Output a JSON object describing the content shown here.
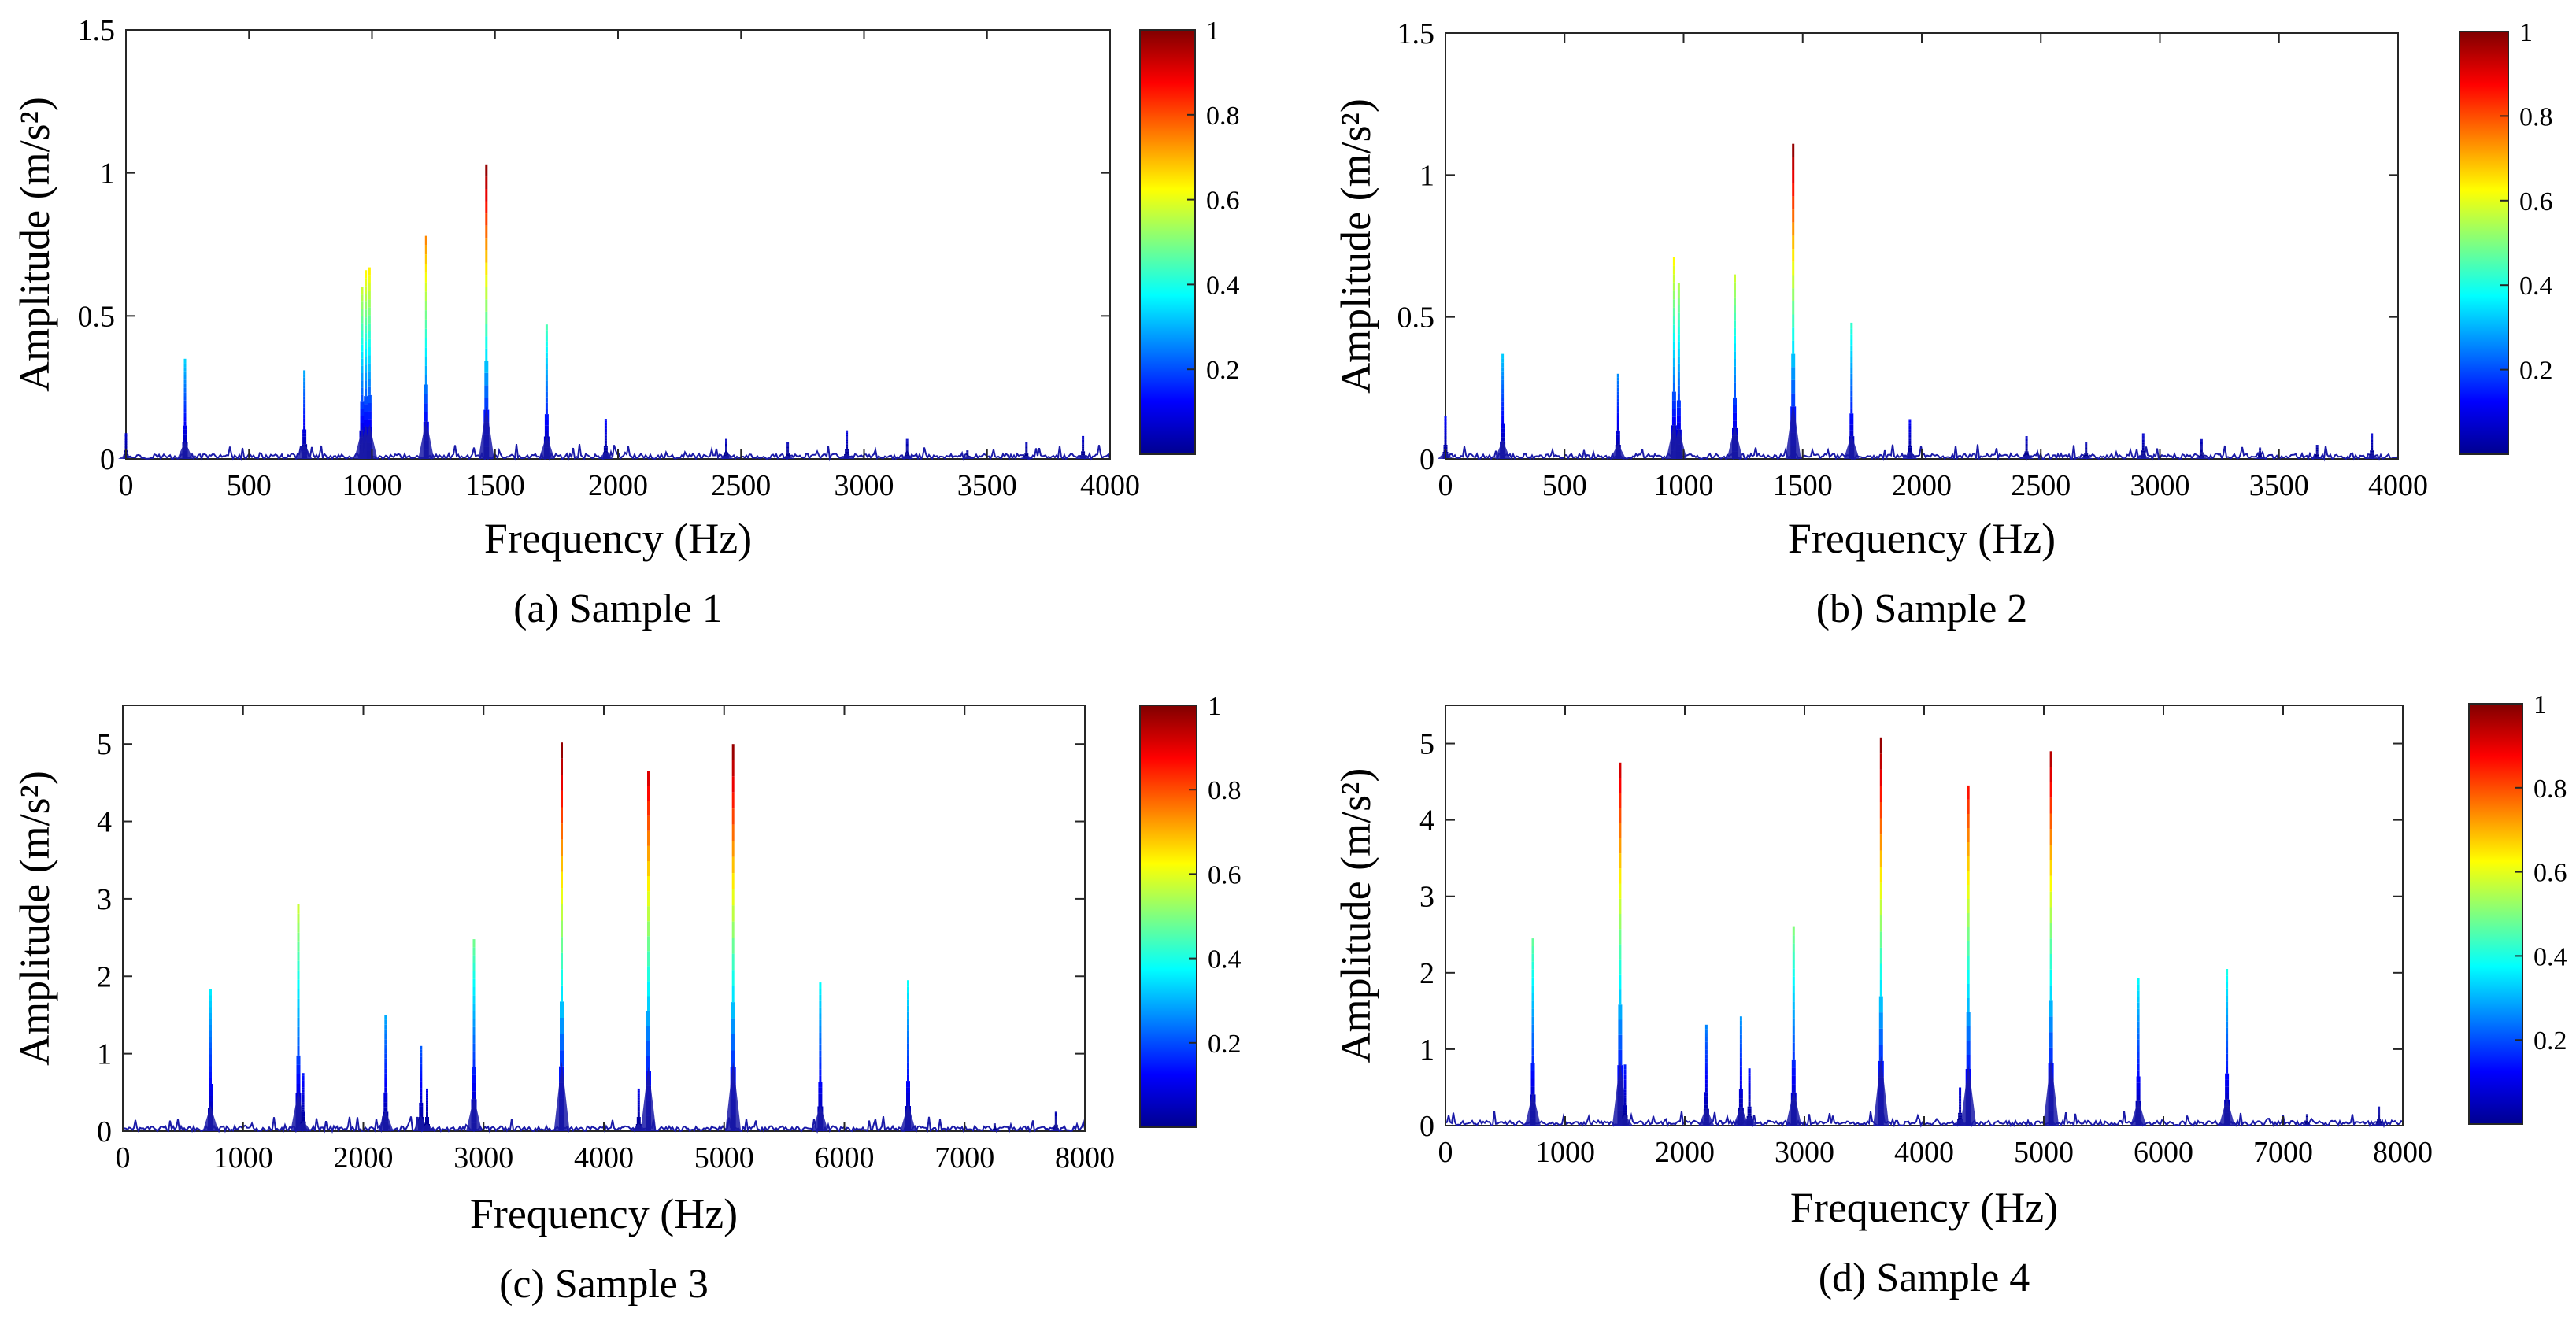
{
  "figure": {
    "panels": [
      {
        "caption": "(a) Sample 1"
      },
      {
        "caption": "(b) Sample 2"
      },
      {
        "caption": "(c) Sample 3"
      },
      {
        "caption": "(d) Sample 4"
      }
    ]
  },
  "chart_data": [
    {
      "type": "line",
      "caption": "(a) Sample 1",
      "xlabel": "Frequency (Hz)",
      "ylabel": "Amplitude (m/s²)",
      "xlim": [
        0,
        4000
      ],
      "ylim": [
        0,
        1.5
      ],
      "xticks": [
        0,
        500,
        1000,
        1500,
        2000,
        2500,
        3000,
        3500,
        4000
      ],
      "yticks": [
        0,
        0.5,
        1,
        1.5
      ],
      "ytick_labels": [
        "0",
        "0.5",
        "1",
        "1.5"
      ],
      "colorbar": {
        "range": [
          0,
          1
        ],
        "ticks": [
          "0.2",
          "0.4",
          "0.6",
          "0.8",
          "1"
        ],
        "colormap": "jet"
      },
      "grid": false,
      "series": [
        {
          "x": [
            0,
            240,
            725,
            960,
            975,
            990,
            1220,
            1465,
            1710,
            1950,
            2440,
            2690,
            2930,
            3175,
            3420,
            3660,
            3890
          ],
          "values": [
            0.09,
            0.35,
            0.31,
            0.6,
            0.66,
            0.67,
            0.78,
            1.03,
            0.47,
            0.14,
            0.07,
            0.06,
            0.1,
            0.07,
            0.03,
            0.06,
            0.08
          ]
        }
      ]
    },
    {
      "type": "line",
      "caption": "(b) Sample 2",
      "xlabel": "Frequency (Hz)",
      "ylabel": "Amplitude (m/s²)",
      "xlim": [
        0,
        4000
      ],
      "ylim": [
        0,
        1.5
      ],
      "xticks": [
        0,
        500,
        1000,
        1500,
        2000,
        2500,
        3000,
        3500,
        4000
      ],
      "yticks": [
        0,
        0.5,
        1,
        1.5
      ],
      "ytick_labels": [
        "0",
        "0.5",
        "1",
        "1.5"
      ],
      "colorbar": {
        "range": [
          0,
          1
        ],
        "ticks": [
          "0.2",
          "0.4",
          "0.6",
          "0.8",
          "1"
        ],
        "colormap": "jet"
      },
      "grid": false,
      "series": [
        {
          "x": [
            0,
            240,
            725,
            960,
            980,
            1215,
            1460,
            1705,
            1950,
            2440,
            2690,
            2930,
            3175,
            3420,
            3660,
            3890
          ],
          "values": [
            0.15,
            0.37,
            0.3,
            0.71,
            0.62,
            0.65,
            1.11,
            0.48,
            0.14,
            0.08,
            0.06,
            0.09,
            0.07,
            0.04,
            0.05,
            0.09
          ]
        }
      ]
    },
    {
      "type": "line",
      "caption": "(c) Sample 3",
      "xlabel": "Frequency (Hz)",
      "ylabel": "Amplitude (m/s²)",
      "xlim": [
        0,
        8000
      ],
      "ylim": [
        0,
        5.5
      ],
      "xticks": [
        0,
        1000,
        2000,
        3000,
        4000,
        5000,
        6000,
        7000,
        8000
      ],
      "yticks": [
        0,
        1,
        2,
        3,
        4,
        5
      ],
      "ytick_labels": [
        "0",
        "1",
        "2",
        "3",
        "4",
        "5"
      ],
      "colorbar": {
        "range": [
          0,
          1
        ],
        "ticks": [
          "0.2",
          "0.4",
          "0.6",
          "0.8",
          "1"
        ],
        "colormap": "jet"
      },
      "grid": false,
      "series": [
        {
          "x": [
            730,
            1460,
            1500,
            2185,
            2480,
            2530,
            2920,
            3650,
            4290,
            4370,
            5075,
            5800,
            6530,
            7250,
            7760
          ],
          "values": [
            1.83,
            2.93,
            0.75,
            1.5,
            1.1,
            0.55,
            2.48,
            5.02,
            0.55,
            4.65,
            5.0,
            1.92,
            1.95,
            0.1,
            0.25
          ]
        }
      ]
    },
    {
      "type": "line",
      "caption": "(d) Sample 4",
      "xlabel": "Frequency (Hz)",
      "ylabel": "Amplitude (m/s²)",
      "xlim": [
        0,
        8000
      ],
      "ylim": [
        0,
        5.5
      ],
      "xticks": [
        0,
        1000,
        2000,
        3000,
        4000,
        5000,
        6000,
        7000,
        8000
      ],
      "yticks": [
        0,
        1,
        2,
        3,
        4,
        5
      ],
      "ytick_labels": [
        "0",
        "1",
        "2",
        "3",
        "4",
        "5"
      ],
      "colorbar": {
        "range": [
          0,
          1
        ],
        "ticks": [
          "0.2",
          "0.4",
          "0.6",
          "0.8",
          "1"
        ],
        "colormap": "jet"
      },
      "grid": false,
      "series": [
        {
          "x": [
            730,
            1460,
            1500,
            2180,
            2470,
            2540,
            2910,
            3640,
            4300,
            4370,
            5060,
            5790,
            6530,
            7200,
            7800
          ],
          "values": [
            2.45,
            4.75,
            0.8,
            1.32,
            1.43,
            0.75,
            2.6,
            5.08,
            0.5,
            4.45,
            4.9,
            1.93,
            2.05,
            0.15,
            0.25
          ]
        }
      ]
    }
  ]
}
